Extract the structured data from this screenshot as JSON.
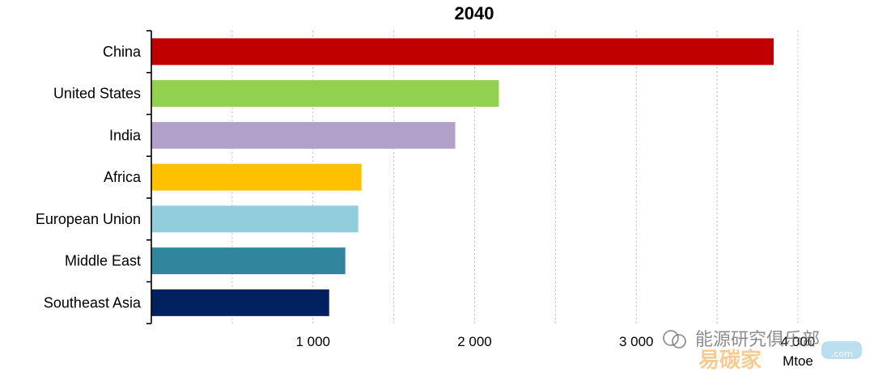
{
  "chart_data": {
    "type": "bar",
    "orientation": "horizontal",
    "title": "2040",
    "categories": [
      "China",
      "United States",
      "India",
      "Africa",
      "European Union",
      "Middle East",
      "Southeast Asia"
    ],
    "values": [
      3850,
      2150,
      1880,
      1300,
      1280,
      1200,
      1100
    ],
    "colors": [
      "#c00000",
      "#92d050",
      "#b1a0c7",
      "#ffc000",
      "#92cddc",
      "#31859c",
      "#002060"
    ],
    "xlim": [
      0,
      4000
    ],
    "xticks": [
      1000,
      2000,
      3000,
      4000
    ],
    "xtick_labels": [
      "1 000",
      "2 000",
      "3 000",
      "4 000"
    ],
    "unit_label": "Mtoe",
    "grid": "vertical-dashed"
  },
  "watermark": {
    "line1": "能源研究俱乐部",
    "line2": "易碳家",
    "line3": ".com"
  }
}
